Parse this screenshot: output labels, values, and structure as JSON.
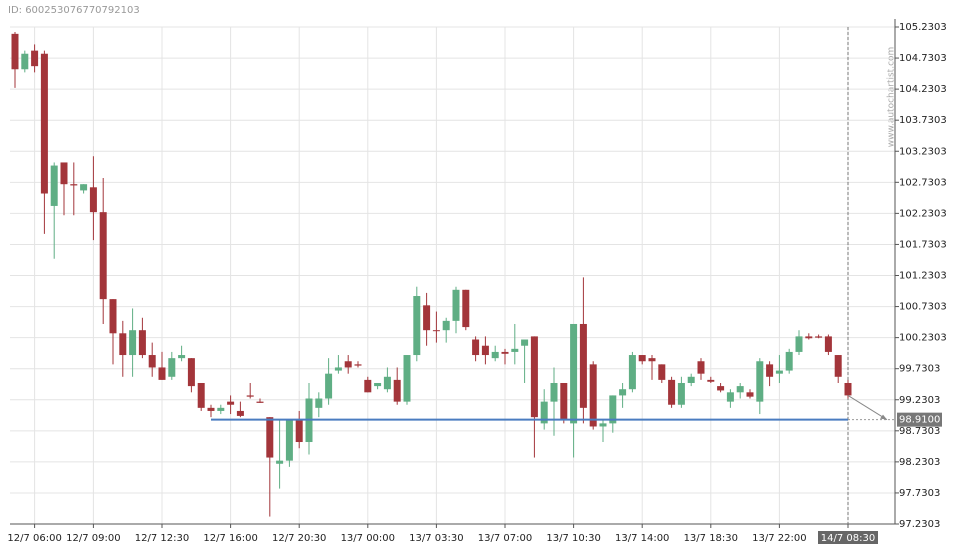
{
  "chart_data": {
    "type": "candlestick",
    "id_label": "ID: 600253076770792103",
    "watermark": "www.autochartist.com",
    "up_color": "#5fae84",
    "down_color": "#a3353a",
    "grid": true,
    "categories": [
      null,
      null,
      "12/7 06:00",
      null,
      null,
      null,
      null,
      null,
      "12/7 09:00",
      null,
      null,
      null,
      null,
      null,
      null,
      "12/7 12:30",
      null,
      null,
      null,
      null,
      null,
      null,
      "12/7 16:00",
      null,
      null,
      null,
      null,
      null,
      null,
      "12/7 20:30",
      null,
      null,
      null,
      null,
      null,
      null,
      "13/7 00:00",
      null,
      null,
      null,
      null,
      null,
      null,
      "13/7 03:30",
      null,
      null,
      null,
      null,
      null,
      null,
      "13/7 07:00",
      null,
      null,
      null,
      null,
      null,
      null,
      "13/7 10:30",
      null,
      null,
      null,
      null,
      null,
      null,
      "13/7 14:00",
      null,
      null,
      null,
      null,
      null,
      null,
      "13/7 18:30",
      null,
      null,
      null,
      null,
      null,
      null,
      "13/7 22:00",
      null,
      null,
      null,
      null,
      null,
      null,
      "14/7 08:30"
    ],
    "open": [
      105.12,
      104.55,
      104.85,
      104.8,
      102.35,
      103.05,
      102.7,
      102.6,
      102.65,
      102.25,
      100.85,
      100.3,
      99.95,
      100.35,
      99.95,
      99.75,
      99.6,
      99.9,
      99.9,
      99.5,
      99.1,
      99.05,
      99.2,
      99.05,
      99.3,
      99.2,
      98.95,
      98.2,
      98.25,
      98.9,
      98.55,
      99.1,
      99.25,
      99.7,
      99.85,
      99.8,
      99.55,
      99.45,
      99.4,
      99.55,
      99.2,
      99.95,
      100.75,
      100.35,
      100.35,
      100.5,
      101.0,
      100.2,
      100.1,
      99.9,
      100.0,
      100.0,
      100.1,
      100.25,
      98.85,
      99.2,
      99.5,
      98.85,
      100.45,
      99.8,
      98.8,
      98.85,
      99.3,
      99.4,
      99.95,
      99.9,
      99.8,
      99.55,
      99.15,
      99.5,
      99.85,
      99.55,
      99.45,
      99.2,
      99.35,
      99.35,
      99.2,
      99.8,
      99.65,
      99.7,
      100.0,
      100.25,
      100.25,
      100.25,
      99.95,
      99.5
    ],
    "high": [
      105.15,
      104.85,
      104.95,
      104.85,
      103.05,
      103.05,
      103.05,
      102.7,
      103.15,
      102.8,
      100.85,
      100.5,
      100.7,
      100.55,
      100.15,
      100.0,
      100.0,
      100.1,
      99.9,
      99.5,
      99.15,
      99.15,
      99.3,
      99.2,
      99.5,
      99.25,
      98.95,
      98.9,
      98.9,
      99.05,
      99.5,
      99.35,
      99.9,
      99.95,
      99.95,
      99.85,
      99.6,
      99.5,
      99.75,
      99.75,
      99.95,
      101.05,
      100.95,
      100.65,
      100.55,
      101.05,
      101.0,
      100.25,
      100.25,
      100.1,
      100.05,
      100.45,
      100.2,
      100.25,
      99.4,
      99.75,
      99.5,
      100.45,
      101.2,
      99.85,
      98.9,
      99.3,
      99.5,
      100.0,
      99.95,
      99.95,
      99.8,
      99.6,
      99.6,
      99.65,
      99.9,
      99.6,
      99.5,
      99.4,
      99.5,
      99.4,
      99.9,
      99.85,
      99.95,
      100.05,
      100.35,
      100.3,
      100.28,
      100.28,
      99.95,
      99.55
    ],
    "low": [
      104.25,
      104.5,
      104.5,
      101.9,
      101.5,
      102.2,
      102.2,
      102.55,
      101.8,
      100.45,
      99.8,
      99.6,
      99.6,
      99.9,
      99.6,
      99.55,
      99.55,
      99.85,
      99.35,
      99.05,
      98.95,
      99.0,
      99.0,
      98.95,
      99.25,
      99.18,
      97.35,
      97.8,
      98.15,
      98.45,
      98.35,
      98.95,
      99.15,
      99.65,
      99.65,
      99.75,
      99.35,
      99.4,
      99.35,
      99.15,
      99.15,
      99.85,
      100.1,
      100.15,
      100.15,
      100.3,
      100.35,
      99.85,
      99.8,
      99.85,
      99.8,
      99.8,
      99.5,
      98.3,
      98.75,
      98.65,
      98.85,
      98.3,
      98.85,
      98.75,
      98.55,
      98.7,
      99.1,
      99.35,
      99.8,
      99.55,
      99.5,
      99.1,
      99.1,
      99.45,
      99.55,
      99.5,
      99.35,
      99.1,
      99.25,
      99.25,
      99.0,
      99.45,
      99.5,
      99.65,
      99.95,
      100.2,
      100.22,
      99.95,
      99.5,
      99.25
    ],
    "close": [
      104.55,
      104.8,
      104.6,
      102.55,
      103.0,
      102.7,
      102.68,
      102.7,
      102.25,
      100.85,
      100.3,
      99.95,
      100.35,
      99.95,
      99.75,
      99.55,
      99.9,
      99.95,
      99.45,
      99.1,
      99.05,
      99.1,
      99.15,
      98.97,
      99.28,
      99.18,
      98.3,
      98.25,
      98.9,
      98.55,
      99.25,
      99.25,
      99.65,
      99.75,
      99.75,
      99.78,
      99.35,
      99.5,
      99.6,
      99.2,
      99.95,
      100.9,
      100.35,
      100.35,
      100.5,
      101.0,
      100.4,
      99.95,
      99.95,
      100.0,
      99.97,
      100.05,
      100.2,
      98.95,
      99.2,
      99.5,
      98.9,
      100.45,
      99.1,
      98.8,
      98.85,
      99.3,
      99.4,
      99.95,
      99.85,
      99.85,
      99.55,
      99.15,
      99.5,
      99.6,
      99.65,
      99.52,
      99.38,
      99.35,
      99.45,
      99.28,
      99.85,
      99.6,
      99.7,
      100.0,
      100.25,
      100.22,
      100.23,
      100.0,
      99.6,
      99.3
    ],
    "level": {
      "value": 98.91,
      "label": "98.9100",
      "color": "#4a7cc0"
    },
    "ylim": [
      97.2303,
      105.2303
    ],
    "yticks": [
      97.2303,
      97.7303,
      98.2303,
      98.7303,
      99.2303,
      99.7303,
      100.2303,
      100.7303,
      101.2303,
      101.7303,
      102.2303,
      102.7303,
      103.2303,
      103.7303,
      104.2303,
      104.7303,
      105.2303
    ]
  }
}
